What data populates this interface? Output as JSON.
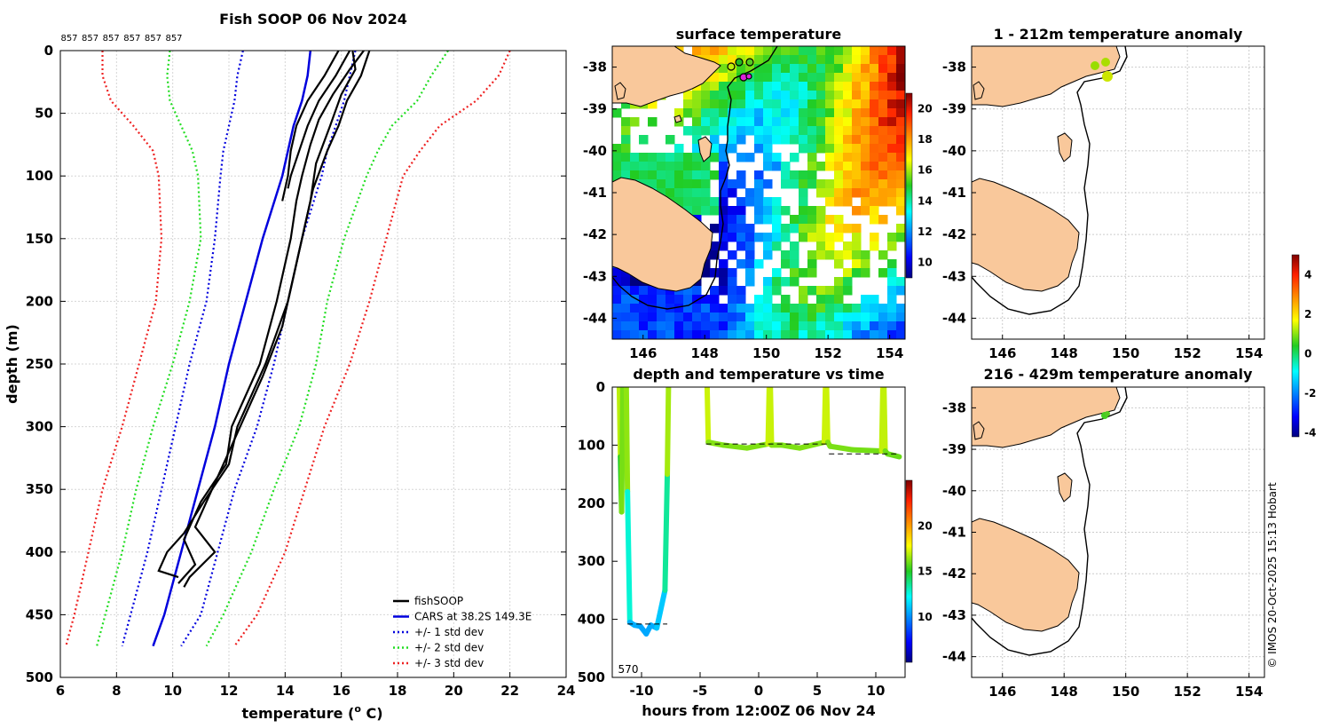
{
  "chart_data": [
    {
      "type": "line",
      "title": "Fish SOOP 06 Nov 2024",
      "drop_labels": [
        "857",
        "857",
        "857",
        "857",
        "857",
        "857"
      ],
      "xlabel": "temperature (",
      "xlabel_sup": "o",
      "xlabel_tail": " C)",
      "ylabel": "depth (m)",
      "xlim": [
        6,
        24
      ],
      "ylim": [
        500,
        0
      ],
      "xticks": [
        "6",
        "8",
        "10",
        "12",
        "14",
        "16",
        "18",
        "20",
        "22",
        "24"
      ],
      "yticks": [
        "0",
        "50",
        "100",
        "150",
        "200",
        "250",
        "300",
        "350",
        "400",
        "450",
        "500"
      ],
      "grid": true,
      "legend": {
        "placement": "bottom-right",
        "entries": [
          "fishSOOP",
          "CARS at 38.2S 149.3E",
          "+/- 1 std dev",
          "+/- 2 std dev",
          "+/- 3 std dev"
        ]
      },
      "depth": [
        0,
        20,
        40,
        60,
        80,
        100,
        150,
        200,
        250,
        300,
        350,
        400,
        450,
        475
      ],
      "series": [
        {
          "name": "CARS at 38.2S 149.3E",
          "color": "#0000dd",
          "style": "solid",
          "temps": [
            14.9,
            14.8,
            14.6,
            14.3,
            14.1,
            13.9,
            13.2,
            12.6,
            12.0,
            11.5,
            10.9,
            10.3,
            9.7,
            9.3
          ]
        },
        {
          "name": "+1 std dev",
          "color": "#0000dd",
          "style": "dotted",
          "temps": [
            16.5,
            16.3,
            16.1,
            15.8,
            15.5,
            15.3,
            14.6,
            14.1,
            13.6,
            13.0,
            12.2,
            11.6,
            11.0,
            10.3
          ]
        },
        {
          "name": "-1 std dev",
          "color": "#0000dd",
          "style": "dotted",
          "temps": [
            12.5,
            12.3,
            12.2,
            12.0,
            11.8,
            11.7,
            11.5,
            11.2,
            10.6,
            10.1,
            9.6,
            9.1,
            8.5,
            8.2
          ]
        },
        {
          "name": "+2 std dev",
          "color": "#22dd22",
          "style": "dotted",
          "temps": [
            19.8,
            19.2,
            18.7,
            17.8,
            17.3,
            16.9,
            16.1,
            15.5,
            15.1,
            14.5,
            13.6,
            12.8,
            11.8,
            11.2
          ]
        },
        {
          "name": "-2 std dev",
          "color": "#22dd22",
          "style": "dotted",
          "temps": [
            9.9,
            9.8,
            9.9,
            10.3,
            10.7,
            10.9,
            11.0,
            10.6,
            10.0,
            9.3,
            8.7,
            8.2,
            7.6,
            7.3
          ]
        },
        {
          "name": "+3 std dev",
          "color": "#ee2222",
          "style": "dotted",
          "temps": [
            22.0,
            21.6,
            20.8,
            19.5,
            18.8,
            18.2,
            17.6,
            17.0,
            16.3,
            15.4,
            14.7,
            14.0,
            13.0,
            12.2
          ]
        },
        {
          "name": "-3 std dev",
          "color": "#ee2222",
          "style": "dotted",
          "temps": [
            7.5,
            7.5,
            7.8,
            8.6,
            9.3,
            9.5,
            9.6,
            9.4,
            8.8,
            8.2,
            7.5,
            7.0,
            6.5,
            6.2
          ]
        }
      ],
      "fishsoop_profiles": [
        {
          "depth": [
            0,
            20,
            40,
            60,
            80,
            100,
            120
          ],
          "temps": [
            15.9,
            15.4,
            14.8,
            14.4,
            14.2,
            14.1,
            13.9
          ]
        },
        {
          "depth": [
            0,
            20,
            40,
            60,
            80,
            100,
            110
          ],
          "temps": [
            16.3,
            15.8,
            15.2,
            14.8,
            14.5,
            14.2,
            14.1
          ]
        },
        {
          "depth": [
            0,
            15,
            35,
            55,
            75,
            100,
            120,
            150,
            200,
            250,
            300,
            330,
            360,
            390,
            410,
            425
          ],
          "temps": [
            16.8,
            16.3,
            15.7,
            15.2,
            14.9,
            14.6,
            14.4,
            14.2,
            13.7,
            13.1,
            12.1,
            11.9,
            11.0,
            10.4,
            10.8,
            10.2
          ]
        },
        {
          "depth": [
            0,
            15,
            35,
            60,
            90,
            120,
            150,
            200,
            250,
            300,
            330,
            360,
            385,
            400,
            415,
            420
          ],
          "temps": [
            16.4,
            16.5,
            16.0,
            15.6,
            15.1,
            14.9,
            14.6,
            14.1,
            13.3,
            12.3,
            12.0,
            11.1,
            10.4,
            9.8,
            9.5,
            10.2
          ]
        },
        {
          "depth": [
            0,
            20,
            40,
            60,
            80,
            110,
            140,
            180,
            220,
            260,
            300,
            340,
            380,
            400,
            420,
            428
          ],
          "temps": [
            17.0,
            16.7,
            16.2,
            15.9,
            15.5,
            15.0,
            14.7,
            14.3,
            13.9,
            13.2,
            12.4,
            11.6,
            10.8,
            11.5,
            10.6,
            10.4
          ]
        }
      ]
    },
    {
      "type": "heatmap",
      "title": "surface temperature",
      "xticks": [
        "146",
        "148",
        "150",
        "152",
        "154"
      ],
      "yticks": [
        "-38",
        "-39",
        "-40",
        "-41",
        "-42",
        "-43",
        "-44"
      ],
      "colorbar_ticks": [
        "20",
        "18",
        "16",
        "14",
        "12",
        "10"
      ],
      "colorbar_range": [
        9,
        21
      ],
      "units": "deg C"
    },
    {
      "type": "line",
      "title": "depth and temperature vs time",
      "xlabel": "hours from 12:00Z 06 Nov 24",
      "xticks": [
        "-10",
        "-5",
        "0",
        "5",
        "10"
      ],
      "yticks": [
        "0",
        "100",
        "200",
        "300",
        "400",
        "500"
      ],
      "xlim": [
        -12.5,
        12.5
      ],
      "ylim": [
        500,
        0
      ],
      "annotation": "570",
      "colorbar_ticks": [
        "20",
        "15",
        "10"
      ],
      "colorbar_range": [
        5,
        25
      ],
      "segments": [
        {
          "t": [
            -11.9,
            -11.8,
            -11.7,
            -11.6
          ],
          "d": [
            0,
            120,
            215,
            0
          ]
        },
        {
          "t": [
            -11.3,
            -11.2,
            -11.0,
            -10.6,
            -10.1,
            -9.6,
            -9.2,
            -8.7,
            -8.0,
            -7.8,
            -7.7
          ],
          "d": [
            0,
            180,
            405,
            410,
            412,
            425,
            410,
            415,
            350,
            150,
            0
          ]
        },
        {
          "t": [
            -4.4,
            -4.3,
            -3,
            -1,
            0.8,
            0.9,
            1.0,
            1.1,
            2,
            3.5,
            5.6,
            5.7,
            5.8,
            5.9,
            6.1,
            8,
            10.5,
            10.6,
            10.7,
            10.8,
            11,
            12
          ],
          "d": [
            0,
            95,
            100,
            105,
            98,
            0,
            0,
            100,
            100,
            105,
            95,
            0,
            0,
            95,
            102,
            108,
            110,
            0,
            0,
            110,
            115,
            120
          ]
        }
      ]
    },
    {
      "type": "heatmap",
      "title": "1 - 212m temperature anomaly",
      "xticks": [
        "146",
        "148",
        "150",
        "152",
        "154"
      ],
      "yticks": [
        "-38",
        "-39",
        "-40",
        "-41",
        "-42",
        "-43",
        "-44"
      ]
    },
    {
      "type": "heatmap",
      "title": "216 - 429m temperature anomaly",
      "xticks": [
        "146",
        "148",
        "150",
        "152",
        "154"
      ],
      "yticks": [
        "-38",
        "-39",
        "-40",
        "-41",
        "-42",
        "-43",
        "-44"
      ],
      "colorbar_ticks": [
        "4",
        "2",
        "0",
        "-2",
        "-4"
      ],
      "colorbar_range": [
        -4.2,
        5
      ]
    }
  ],
  "footer": {
    "copyright": "© IMOS 20-Oct-2025 15:13 Hobart"
  }
}
